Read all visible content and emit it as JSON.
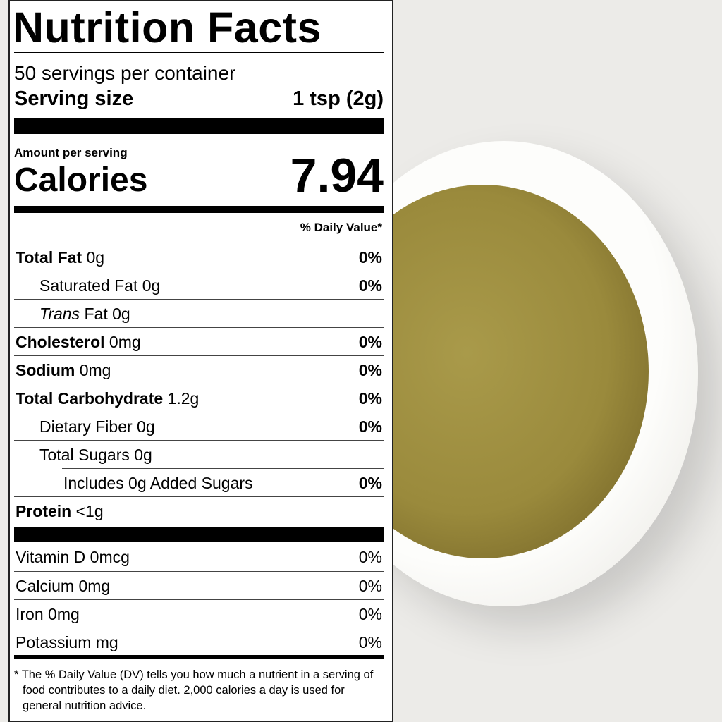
{
  "label": {
    "title": "Nutrition Facts",
    "servings": "50 servings per container",
    "serving_size_label": "Serving size",
    "serving_size": "1 tsp (2g)",
    "amount_per_serving": "Amount per serving",
    "calories_label": "Calories",
    "calories": "7.94",
    "daily_value_header": "% Daily Value*",
    "nutrients": [
      {
        "name": "Total Fat",
        "amount": "0g",
        "dv": "0%"
      },
      {
        "name": "Saturated Fat",
        "amount": "0g",
        "dv": "0%"
      },
      {
        "name_italic": "Trans",
        "name": "Fat",
        "amount": "0g"
      },
      {
        "name": "Cholesterol",
        "amount": "0mg",
        "dv": "0%"
      },
      {
        "name": "Sodium",
        "amount": "0mg",
        "dv": "0%"
      },
      {
        "name": "Total Carbohydrate",
        "amount": "1.2g",
        "dv": "0%"
      },
      {
        "name": "Dietary Fiber",
        "amount": "0g",
        "dv": "0%"
      },
      {
        "name": "Total Sugars",
        "amount": "0g"
      },
      {
        "name": "Includes 0g Added Sugars",
        "dv": "0%"
      },
      {
        "name": "Protein",
        "amount": "<1g"
      }
    ],
    "vitamins": [
      {
        "name": "Vitamin D",
        "amount": "0mcg",
        "dv": "0%"
      },
      {
        "name": "Calcium",
        "amount": "0mg",
        "dv": "0%"
      },
      {
        "name": "Iron",
        "amount": "0mg",
        "dv": "0%"
      },
      {
        "name": "Potassium",
        "amount": "mg",
        "dv": "0%"
      }
    ],
    "footnote": "* The % Daily Value (DV) tells you how much a nutrient in a serving of food contributes to a daily diet. 2,000 calories a day is used for general nutrition advice."
  }
}
